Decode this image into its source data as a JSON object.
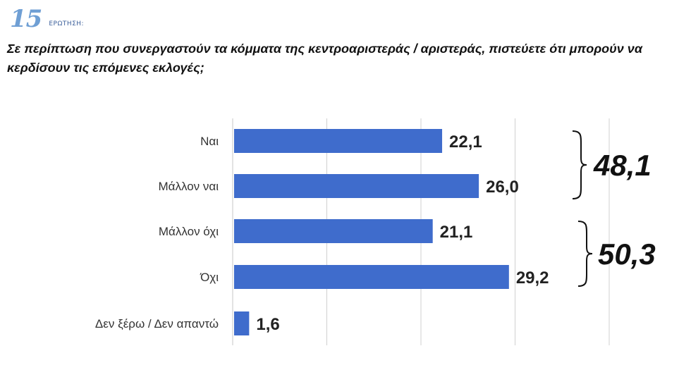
{
  "header": {
    "question_number": "15",
    "question_label": "ΕΡΩΤΗΣΗ:",
    "question_text": "Σε περίπτωση που συνεργαστούν τα κόμματα της κεντροαριστεράς / αριστεράς, πιστεύετε ότι μπορούν να κερδίσουν τις επόμενες εκλογές;"
  },
  "colors": {
    "bar": "#3f6ccc",
    "gridline": "#d0d0d0",
    "question_number": "#6f9fd4"
  },
  "chart_data": {
    "type": "bar",
    "orientation": "horizontal",
    "categories": [
      "Ναι",
      "Μάλλον ναι",
      "Μάλλον όχι",
      "Όχι",
      "Δεν ξέρω / Δεν απαντώ"
    ],
    "values": [
      22.1,
      26.0,
      21.1,
      29.2,
      1.6
    ],
    "value_labels": [
      "22,1",
      "26,0",
      "21,1",
      "29,2",
      "1,6"
    ],
    "xlim": [
      0,
      40
    ],
    "grid": true,
    "groups": [
      {
        "categories": [
          "Ναι",
          "Μάλλον ναι"
        ],
        "total_label": "48,1"
      },
      {
        "categories": [
          "Μάλλον όχι",
          "Όχι"
        ],
        "total_label": "50,3"
      }
    ]
  }
}
